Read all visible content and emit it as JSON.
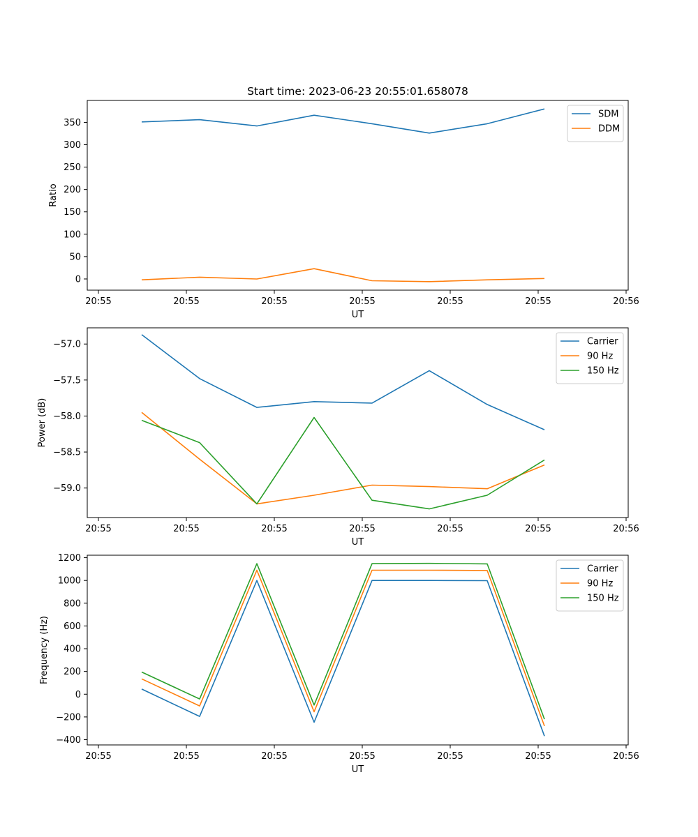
{
  "title": "Start time: 2023-06-23 20:55:01.658078",
  "chart_data": [
    {
      "type": "line",
      "ylabel": "Ratio",
      "xlabel": "UT",
      "x_tick_labels": [
        "20:55",
        "20:55",
        "20:55",
        "20:55",
        "20:55",
        "20:55",
        "20:56"
      ],
      "y_ticks": [
        0,
        50,
        100,
        150,
        200,
        250,
        300,
        350
      ],
      "ylim": [
        -25,
        399
      ],
      "legend_position": "upper right",
      "series": [
        {
          "name": "SDM",
          "color": "#1f77b4",
          "values": [
            351,
            356,
            342,
            366,
            347,
            326,
            347,
            380
          ]
        },
        {
          "name": "DDM",
          "color": "#ff7f0e",
          "values": [
            -2,
            4,
            0,
            23,
            -4,
            -6,
            -2,
            1
          ]
        }
      ]
    },
    {
      "type": "line",
      "ylabel": "Power (dB)",
      "xlabel": "UT",
      "x_tick_labels": [
        "20:55",
        "20:55",
        "20:55",
        "20:55",
        "20:55",
        "20:55",
        "20:56"
      ],
      "y_ticks": [
        -59.0,
        -58.5,
        -58.0,
        -57.5,
        -57.0
      ],
      "y_tick_labels": [
        "−59.0",
        "−58.5",
        "−58.0",
        "−57.5",
        "−57.0"
      ],
      "ylim": [
        -59.41,
        -56.775
      ],
      "legend_position": "upper right",
      "series": [
        {
          "name": "Carrier",
          "color": "#1f77b4",
          "values": [
            -56.87,
            -57.48,
            -57.88,
            -57.8,
            -57.82,
            -57.37,
            -57.84,
            -58.19
          ]
        },
        {
          "name": "90 Hz",
          "color": "#ff7f0e",
          "values": [
            -57.95,
            -58.6,
            -59.22,
            -59.1,
            -58.96,
            -58.98,
            -59.01,
            -58.68
          ]
        },
        {
          "name": "150 Hz",
          "color": "#2ca02c",
          "values": [
            -58.06,
            -58.37,
            -59.22,
            -58.02,
            -59.17,
            -59.29,
            -59.1,
            -58.61
          ]
        }
      ]
    },
    {
      "type": "line",
      "ylabel": "Frequency (Hz)",
      "xlabel": "UT",
      "x_tick_labels": [
        "20:55",
        "20:55",
        "20:55",
        "20:55",
        "20:55",
        "20:55",
        "20:56"
      ],
      "y_ticks": [
        -400,
        -200,
        0,
        200,
        400,
        600,
        800,
        1000,
        1200
      ],
      "y_tick_labels": [
        "−400",
        "−200",
        "0",
        "200",
        "400",
        "600",
        "800",
        "1000",
        "1200"
      ],
      "ylim": [
        -446,
        1222
      ],
      "legend_position": "upper right",
      "series": [
        {
          "name": "Carrier",
          "color": "#1f77b4",
          "values": [
            45,
            -195,
            1000,
            -247,
            1000,
            1000,
            998,
            -368
          ]
        },
        {
          "name": "90 Hz",
          "color": "#ff7f0e",
          "values": [
            135,
            -103,
            1090,
            -155,
            1090,
            1090,
            1088,
            -280
          ]
        },
        {
          "name": "150 Hz",
          "color": "#2ca02c",
          "values": [
            195,
            -42,
            1148,
            -95,
            1148,
            1150,
            1146,
            -220
          ]
        }
      ]
    }
  ]
}
